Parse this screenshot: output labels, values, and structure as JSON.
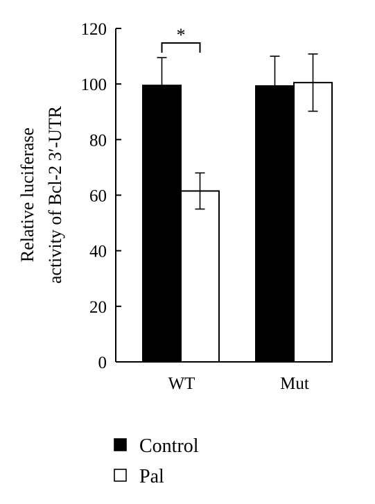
{
  "chart_data": {
    "type": "bar",
    "categories": [
      "WT",
      "Mut"
    ],
    "series": [
      {
        "name": "Control",
        "color": "#000000",
        "values": [
          99.5,
          99.3
        ],
        "errors": [
          10,
          10.7
        ]
      },
      {
        "name": "Pal",
        "color": "#ffffff",
        "values": [
          61.5,
          100.5
        ],
        "errors": [
          6.5,
          10.3
        ]
      }
    ],
    "ylabel_lines": [
      "Relative luciferase",
      "activity of Bcl-2 3′-UTR"
    ],
    "ylim": [
      0,
      120
    ],
    "yticks": [
      "0",
      "20",
      "40",
      "60",
      "80",
      "100",
      "120"
    ],
    "grid": false,
    "legend_position": "bottom-left",
    "annotations": [
      {
        "text": "*",
        "category": "WT",
        "between": [
          "Control",
          "Pal"
        ]
      }
    ]
  }
}
